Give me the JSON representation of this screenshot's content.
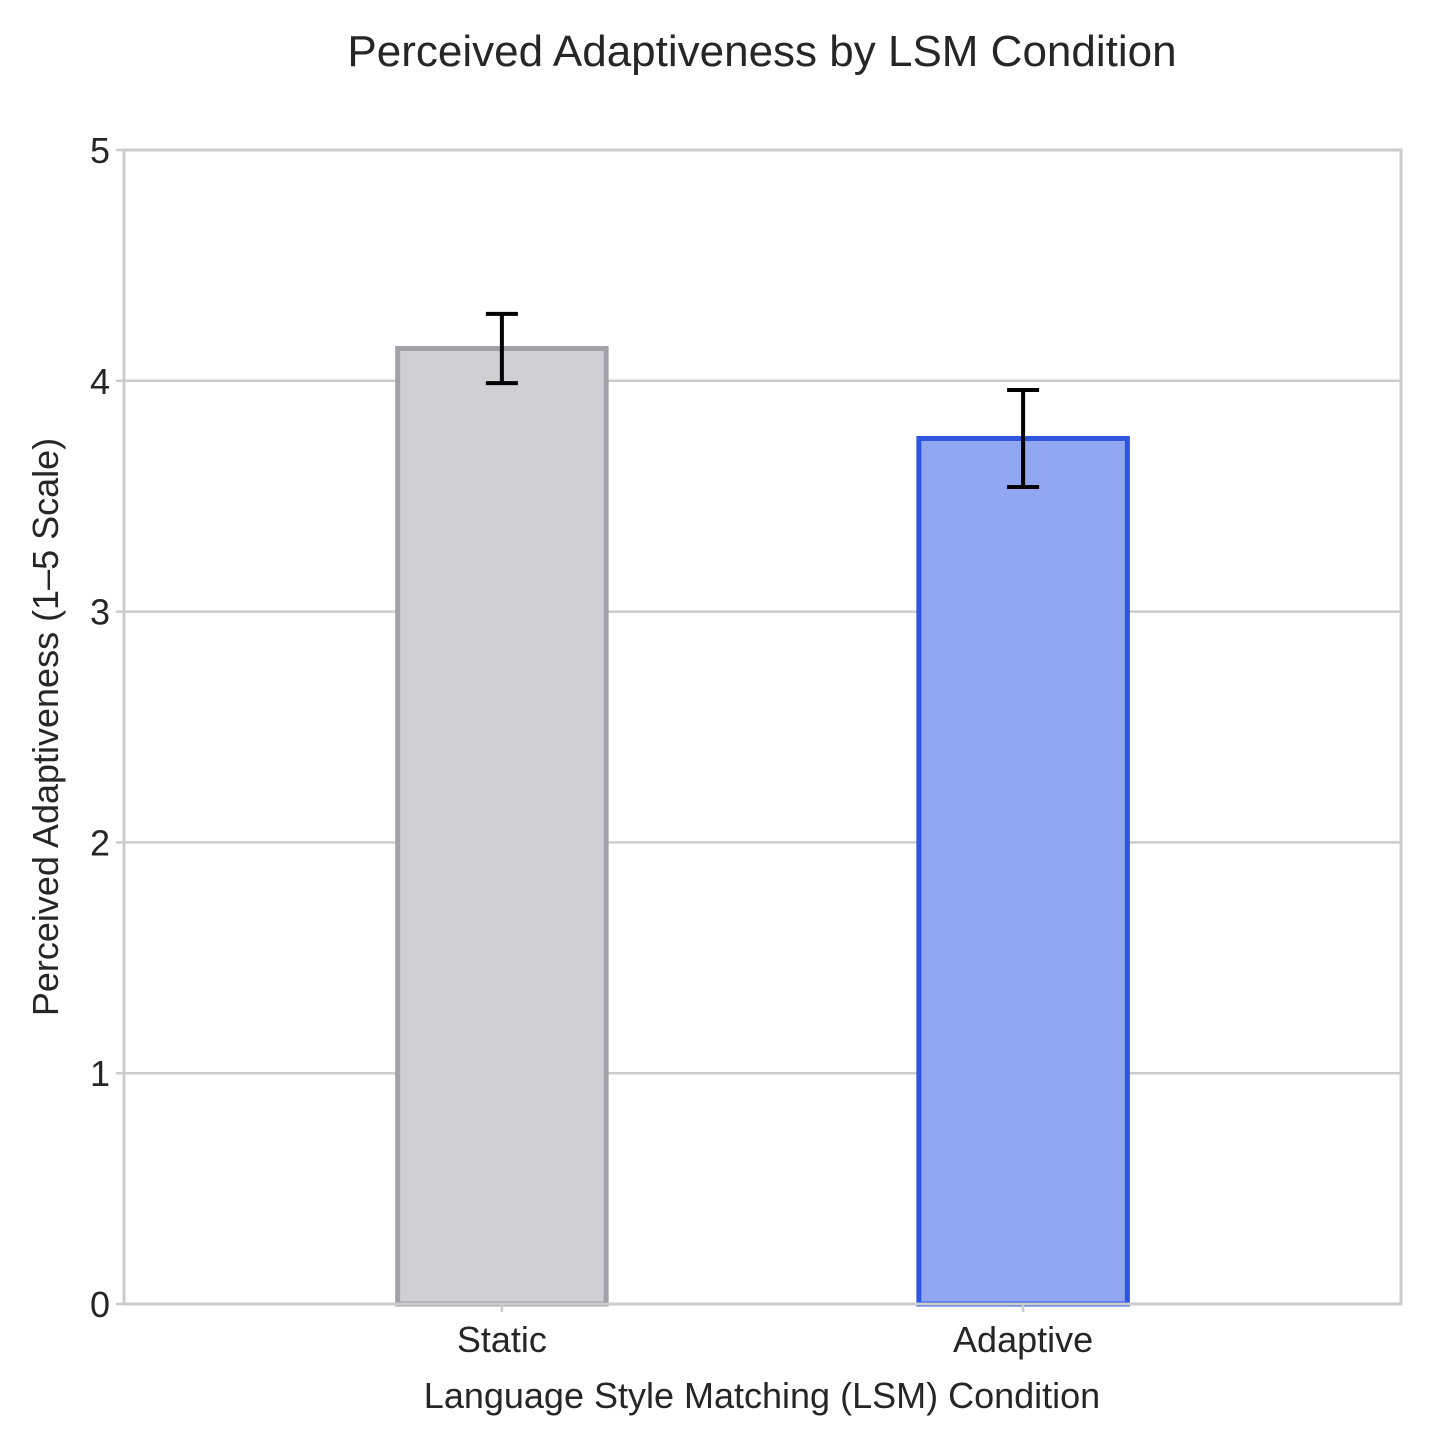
{
  "chart_data": {
    "type": "bar",
    "title": "Perceived Adaptiveness by LSM Condition",
    "xlabel": "Language Style Matching (LSM) Condition",
    "ylabel": "Perceived Adaptiveness (1–5 Scale)",
    "categories": [
      "Static",
      "Adaptive"
    ],
    "values": [
      4.14,
      3.75
    ],
    "error": [
      0.15,
      0.21
    ],
    "ylim": [
      0,
      5
    ],
    "yticks": [
      "0",
      "1",
      "2",
      "3",
      "4",
      "5"
    ],
    "grid": true,
    "bar_fill_colors": [
      "#cfcfd4",
      "#91a7f2"
    ],
    "bar_edge_colors": [
      "#a2a2a8",
      "#2d55e0"
    ],
    "error_bar_color": "#000000"
  }
}
